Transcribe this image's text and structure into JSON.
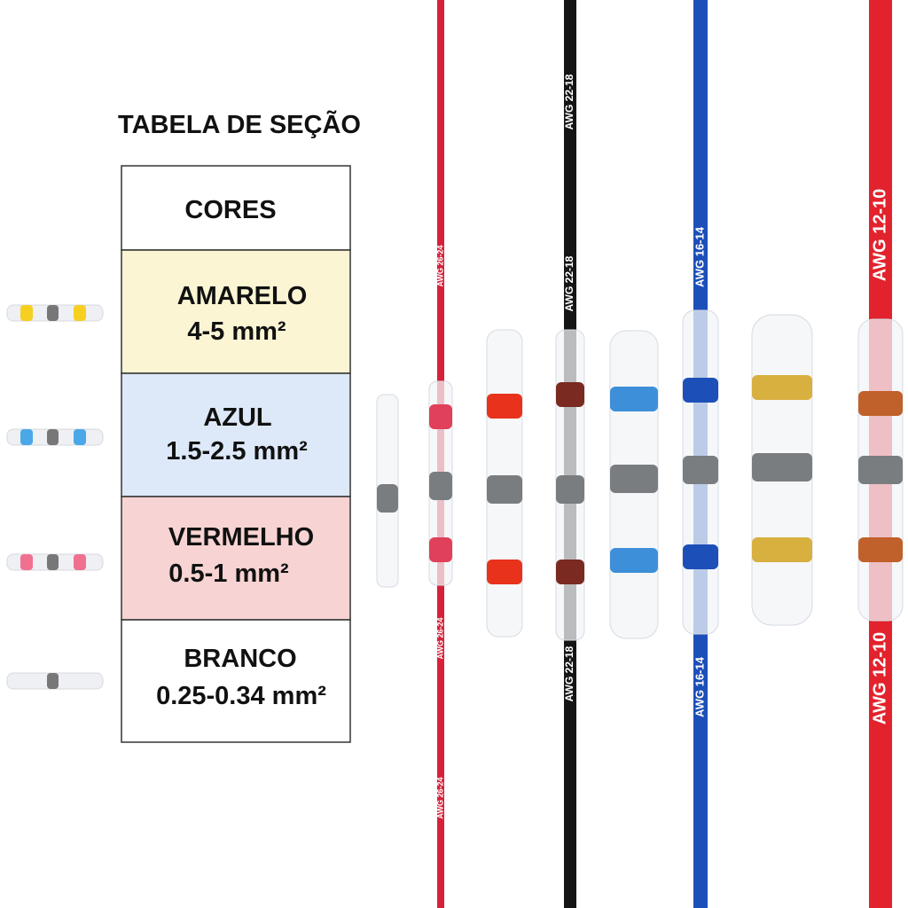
{
  "table": {
    "title": "TABELA DE SEÇÃO",
    "header": "CORES",
    "rows": [
      {
        "name": "AMARELO",
        "size": "4-5 mm²"
      },
      {
        "name": "AZUL",
        "size": "1.5-2.5 mm²"
      },
      {
        "name": "VERMELHO",
        "size": "0.5-1 mm²"
      },
      {
        "name": "BRANCO",
        "size": "0.25-0.34 mm²"
      }
    ]
  },
  "wires": [
    {
      "label": "AWG 26-24"
    },
    {
      "label": "AWG 22-18"
    },
    {
      "label": "AWG 16-14"
    },
    {
      "label": "AWG 12-10"
    }
  ]
}
